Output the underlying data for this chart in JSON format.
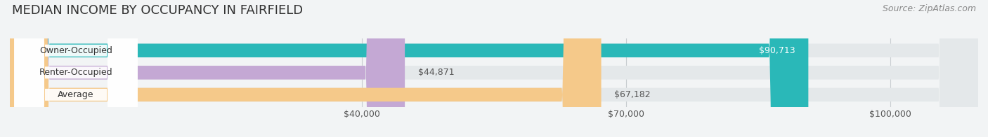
{
  "title": "MEDIAN INCOME BY OCCUPANCY IN FAIRFIELD",
  "source": "Source: ZipAtlas.com",
  "categories": [
    "Owner-Occupied",
    "Renter-Occupied",
    "Average"
  ],
  "values": [
    90713,
    44871,
    67182
  ],
  "labels": [
    "$90,713",
    "$44,871",
    "$67,182"
  ],
  "label_inside": [
    true,
    false,
    false
  ],
  "bar_colors": [
    "#2ab8b8",
    "#c4a8d4",
    "#f5c98a"
  ],
  "bar_bg_color": "#e4e8ea",
  "xmin": 0,
  "xmax": 110000,
  "xticks": [
    40000,
    70000,
    100000
  ],
  "xtick_labels": [
    "$40,000",
    "$70,000",
    "$100,000"
  ],
  "title_fontsize": 13,
  "source_fontsize": 9,
  "label_fontsize": 9,
  "bar_label_fontsize": 9,
  "value_label_fontsize": 9,
  "background_color": "#f2f4f5"
}
